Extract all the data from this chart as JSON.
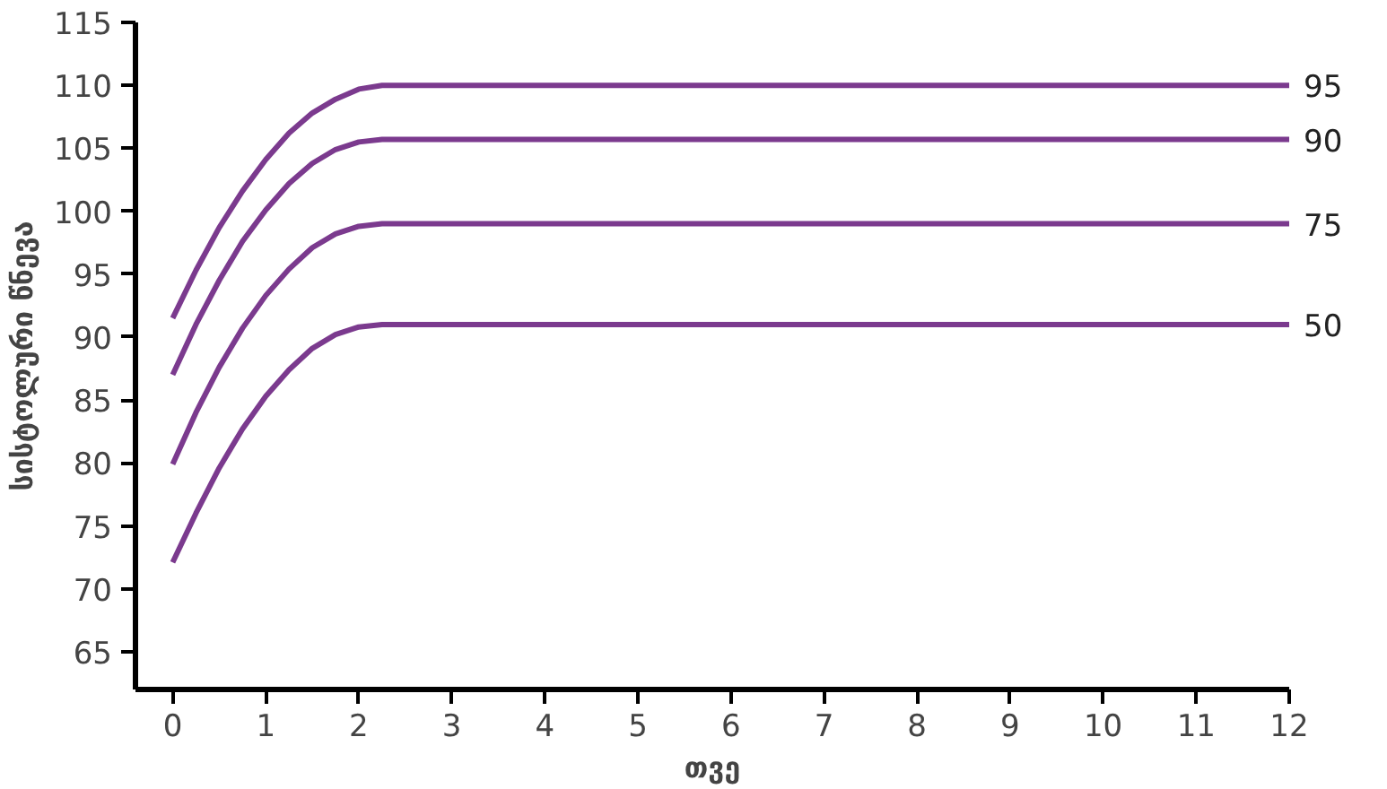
{
  "chart_data": {
    "type": "line",
    "xlabel": "თვე",
    "ylabel": "სისტოლური წნევა",
    "xlim": [
      -0.4,
      12
    ],
    "xticks": [
      0,
      1,
      2,
      3,
      4,
      5,
      6,
      7,
      8,
      9,
      10,
      11,
      12
    ],
    "ylim": [
      62,
      115
    ],
    "yticks": [
      65,
      70,
      75,
      80,
      85,
      90,
      95,
      100,
      105,
      110,
      115
    ],
    "grid": false,
    "marker": "none",
    "line_style": "solid",
    "x": [
      0,
      0.25,
      0.5,
      0.75,
      1,
      1.25,
      1.5,
      1.75,
      2,
      2.25,
      12
    ],
    "series": [
      {
        "name": "95",
        "color": "#7b3a8e",
        "values": [
          91.5,
          95.3,
          98.7,
          101.6,
          104.1,
          106.2,
          107.8,
          108.9,
          109.7,
          110,
          110
        ]
      },
      {
        "name": "90",
        "color": "#7b3a8e",
        "values": [
          87,
          91,
          94.5,
          97.6,
          100.1,
          102.2,
          103.8,
          104.9,
          105.5,
          105.7,
          105.7
        ]
      },
      {
        "name": "75",
        "color": "#7b3a8e",
        "values": [
          79.9,
          84,
          87.6,
          90.7,
          93.3,
          95.4,
          97.1,
          98.2,
          98.8,
          99,
          99
        ]
      },
      {
        "name": "50",
        "color": "#7b3a8e",
        "values": [
          72.1,
          76,
          79.6,
          82.7,
          85.3,
          87.4,
          89.1,
          90.2,
          90.8,
          91,
          91
        ]
      }
    ]
  }
}
